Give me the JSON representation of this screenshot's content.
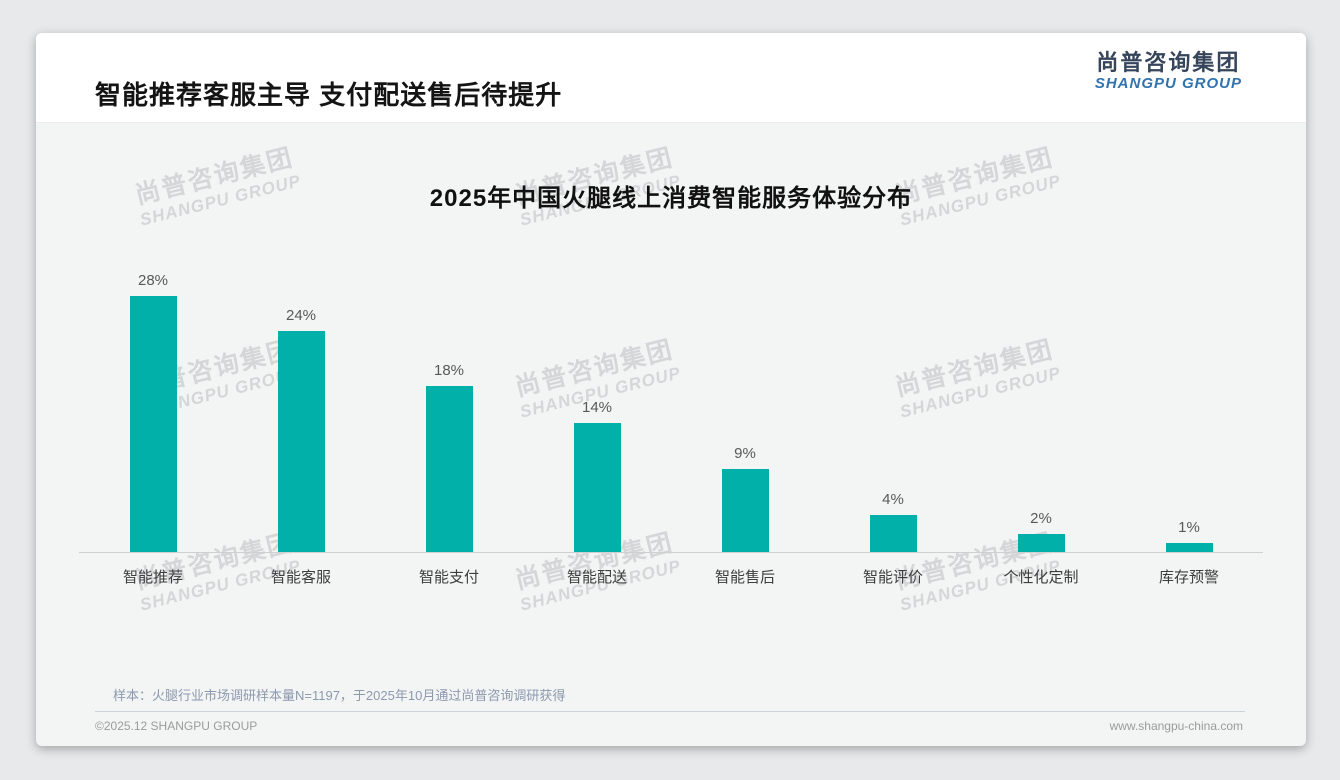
{
  "page": {
    "title": "智能推荐客服主导 支付配送售后待提升",
    "logo": {
      "cn": "尚普咨询集团",
      "en": "SHANGPU GROUP"
    },
    "watermark": {
      "line1": "尚普咨询集团",
      "line2": "SHANGPU GROUP"
    },
    "footer": {
      "note": "样本：火腿行业市场调研样本量N=1197，于2025年10月通过尚普咨询调研获得",
      "copyright": "©2025.12 SHANGPU GROUP",
      "website": "www.shangpu-china.com"
    }
  },
  "chart_data": {
    "type": "bar",
    "title": "2025年中国火腿线上消费智能服务体验分布",
    "categories": [
      "智能推荐",
      "智能客服",
      "智能支付",
      "智能配送",
      "智能售后",
      "智能评价",
      "个性化定制",
      "库存预警"
    ],
    "values": [
      28,
      24,
      18,
      14,
      9,
      4,
      2,
      1
    ],
    "value_labels": [
      "28%",
      "24%",
      "18%",
      "14%",
      "9%",
      "4%",
      "2%",
      "1%"
    ],
    "unit": "%",
    "ylim": [
      0,
      30
    ],
    "grid": false,
    "legend": null,
    "bar_color": "#00b0a9",
    "axis_color": "#cfcfcf"
  }
}
